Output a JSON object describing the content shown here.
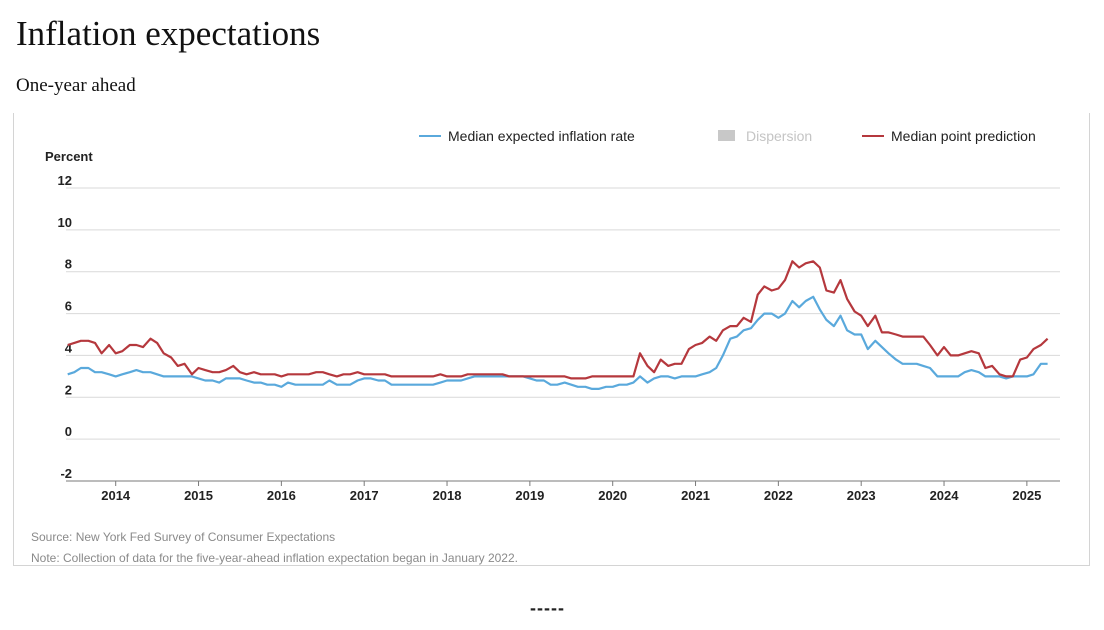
{
  "header": {
    "title": "Inflation expectations",
    "subtitle": "One-year ahead"
  },
  "footnotes": {
    "source": "Source: New York Fed Survey of Consumer Expectations",
    "note": "Note: Collection of data for the five-year-ahead inflation expectation began in January 2022."
  },
  "separator": "-----",
  "chart_data": {
    "type": "line",
    "ylabel": "Percent",
    "ylim": [
      -2,
      12
    ],
    "yticks": [
      -2,
      0,
      2,
      4,
      6,
      8,
      10,
      12
    ],
    "xlim": [
      2013.4,
      2025.4
    ],
    "xticks": [
      "2014",
      "2015",
      "2016",
      "2017",
      "2018",
      "2019",
      "2020",
      "2021",
      "2022",
      "2023",
      "2024",
      "2025"
    ],
    "grid": "horizontal",
    "legend_position": "top-right",
    "legend": [
      {
        "name": "Median expected inflation rate",
        "color": "#5aa9dc",
        "active": true
      },
      {
        "name": "Dispersion",
        "color": "#c8c8c8",
        "active": false
      },
      {
        "name": "Median point prediction",
        "color": "#b5383d",
        "active": true
      }
    ],
    "series": [
      {
        "name": "Median expected inflation rate",
        "color": "#5aa9dc",
        "points": [
          [
            2013.42,
            3.1
          ],
          [
            2013.5,
            3.2
          ],
          [
            2013.58,
            3.4
          ],
          [
            2013.67,
            3.4
          ],
          [
            2013.75,
            3.2
          ],
          [
            2013.83,
            3.2
          ],
          [
            2013.92,
            3.1
          ],
          [
            2014.0,
            3.0
          ],
          [
            2014.08,
            3.1
          ],
          [
            2014.17,
            3.2
          ],
          [
            2014.25,
            3.3
          ],
          [
            2014.33,
            3.2
          ],
          [
            2014.42,
            3.2
          ],
          [
            2014.5,
            3.1
          ],
          [
            2014.58,
            3.0
          ],
          [
            2014.67,
            3.0
          ],
          [
            2014.75,
            3.0
          ],
          [
            2014.83,
            3.0
          ],
          [
            2014.92,
            3.0
          ],
          [
            2015.0,
            2.9
          ],
          [
            2015.08,
            2.8
          ],
          [
            2015.17,
            2.8
          ],
          [
            2015.25,
            2.7
          ],
          [
            2015.33,
            2.9
          ],
          [
            2015.42,
            2.9
          ],
          [
            2015.5,
            2.9
          ],
          [
            2015.58,
            2.8
          ],
          [
            2015.67,
            2.7
          ],
          [
            2015.75,
            2.7
          ],
          [
            2015.83,
            2.6
          ],
          [
            2015.92,
            2.6
          ],
          [
            2016.0,
            2.5
          ],
          [
            2016.08,
            2.7
          ],
          [
            2016.17,
            2.6
          ],
          [
            2016.25,
            2.6
          ],
          [
            2016.33,
            2.6
          ],
          [
            2016.42,
            2.6
          ],
          [
            2016.5,
            2.6
          ],
          [
            2016.58,
            2.8
          ],
          [
            2016.67,
            2.6
          ],
          [
            2016.75,
            2.6
          ],
          [
            2016.83,
            2.6
          ],
          [
            2016.92,
            2.8
          ],
          [
            2017.0,
            2.9
          ],
          [
            2017.08,
            2.9
          ],
          [
            2017.17,
            2.8
          ],
          [
            2017.25,
            2.8
          ],
          [
            2017.33,
            2.6
          ],
          [
            2017.42,
            2.6
          ],
          [
            2017.5,
            2.6
          ],
          [
            2017.58,
            2.6
          ],
          [
            2017.67,
            2.6
          ],
          [
            2017.75,
            2.6
          ],
          [
            2017.83,
            2.6
          ],
          [
            2017.92,
            2.7
          ],
          [
            2018.0,
            2.8
          ],
          [
            2018.08,
            2.8
          ],
          [
            2018.17,
            2.8
          ],
          [
            2018.25,
            2.9
          ],
          [
            2018.33,
            3.0
          ],
          [
            2018.42,
            3.0
          ],
          [
            2018.5,
            3.0
          ],
          [
            2018.58,
            3.0
          ],
          [
            2018.67,
            3.0
          ],
          [
            2018.75,
            3.0
          ],
          [
            2018.83,
            3.0
          ],
          [
            2018.92,
            3.0
          ],
          [
            2019.0,
            2.9
          ],
          [
            2019.08,
            2.8
          ],
          [
            2019.17,
            2.8
          ],
          [
            2019.25,
            2.6
          ],
          [
            2019.33,
            2.6
          ],
          [
            2019.42,
            2.7
          ],
          [
            2019.5,
            2.6
          ],
          [
            2019.58,
            2.5
          ],
          [
            2019.67,
            2.5
          ],
          [
            2019.75,
            2.4
          ],
          [
            2019.83,
            2.4
          ],
          [
            2019.92,
            2.5
          ],
          [
            2020.0,
            2.5
          ],
          [
            2020.08,
            2.6
          ],
          [
            2020.17,
            2.6
          ],
          [
            2020.25,
            2.7
          ],
          [
            2020.33,
            3.0
          ],
          [
            2020.42,
            2.7
          ],
          [
            2020.5,
            2.9
          ],
          [
            2020.58,
            3.0
          ],
          [
            2020.67,
            3.0
          ],
          [
            2020.75,
            2.9
          ],
          [
            2020.83,
            3.0
          ],
          [
            2020.92,
            3.0
          ],
          [
            2021.0,
            3.0
          ],
          [
            2021.08,
            3.1
          ],
          [
            2021.17,
            3.2
          ],
          [
            2021.25,
            3.4
          ],
          [
            2021.33,
            4.0
          ],
          [
            2021.42,
            4.8
          ],
          [
            2021.5,
            4.9
          ],
          [
            2021.58,
            5.2
          ],
          [
            2021.67,
            5.3
          ],
          [
            2021.75,
            5.7
          ],
          [
            2021.83,
            6.0
          ],
          [
            2021.92,
            6.0
          ],
          [
            2022.0,
            5.8
          ],
          [
            2022.08,
            6.0
          ],
          [
            2022.17,
            6.6
          ],
          [
            2022.25,
            6.3
          ],
          [
            2022.33,
            6.6
          ],
          [
            2022.42,
            6.8
          ],
          [
            2022.5,
            6.2
          ],
          [
            2022.58,
            5.7
          ],
          [
            2022.67,
            5.4
          ],
          [
            2022.75,
            5.9
          ],
          [
            2022.83,
            5.2
          ],
          [
            2022.92,
            5.0
          ],
          [
            2023.0,
            5.0
          ],
          [
            2023.08,
            4.3
          ],
          [
            2023.17,
            4.7
          ],
          [
            2023.25,
            4.4
          ],
          [
            2023.33,
            4.1
          ],
          [
            2023.42,
            3.8
          ],
          [
            2023.5,
            3.6
          ],
          [
            2023.58,
            3.6
          ],
          [
            2023.67,
            3.6
          ],
          [
            2023.75,
            3.5
          ],
          [
            2023.83,
            3.4
          ],
          [
            2023.92,
            3.0
          ],
          [
            2024.0,
            3.0
          ],
          [
            2024.08,
            3.0
          ],
          [
            2024.17,
            3.0
          ],
          [
            2024.25,
            3.2
          ],
          [
            2024.33,
            3.3
          ],
          [
            2024.42,
            3.2
          ],
          [
            2024.5,
            3.0
          ],
          [
            2024.58,
            3.0
          ],
          [
            2024.67,
            3.0
          ],
          [
            2024.75,
            2.9
          ],
          [
            2024.83,
            3.0
          ],
          [
            2024.92,
            3.0
          ],
          [
            2025.0,
            3.0
          ],
          [
            2025.08,
            3.1
          ],
          [
            2025.17,
            3.6
          ],
          [
            2025.25,
            3.6
          ]
        ]
      },
      {
        "name": "Median point prediction",
        "color": "#b5383d",
        "points": [
          [
            2013.42,
            4.5
          ],
          [
            2013.5,
            4.6
          ],
          [
            2013.58,
            4.7
          ],
          [
            2013.67,
            4.7
          ],
          [
            2013.75,
            4.6
          ],
          [
            2013.83,
            4.1
          ],
          [
            2013.92,
            4.5
          ],
          [
            2014.0,
            4.1
          ],
          [
            2014.08,
            4.2
          ],
          [
            2014.17,
            4.5
          ],
          [
            2014.25,
            4.5
          ],
          [
            2014.33,
            4.4
          ],
          [
            2014.42,
            4.8
          ],
          [
            2014.5,
            4.6
          ],
          [
            2014.58,
            4.1
          ],
          [
            2014.67,
            3.9
          ],
          [
            2014.75,
            3.5
          ],
          [
            2014.83,
            3.6
          ],
          [
            2014.92,
            3.1
          ],
          [
            2015.0,
            3.4
          ],
          [
            2015.08,
            3.3
          ],
          [
            2015.17,
            3.2
          ],
          [
            2015.25,
            3.2
          ],
          [
            2015.33,
            3.3
          ],
          [
            2015.42,
            3.5
          ],
          [
            2015.5,
            3.2
          ],
          [
            2015.58,
            3.1
          ],
          [
            2015.67,
            3.2
          ],
          [
            2015.75,
            3.1
          ],
          [
            2015.83,
            3.1
          ],
          [
            2015.92,
            3.1
          ],
          [
            2016.0,
            3.0
          ],
          [
            2016.08,
            3.1
          ],
          [
            2016.17,
            3.1
          ],
          [
            2016.25,
            3.1
          ],
          [
            2016.33,
            3.1
          ],
          [
            2016.42,
            3.2
          ],
          [
            2016.5,
            3.2
          ],
          [
            2016.58,
            3.1
          ],
          [
            2016.67,
            3.0
          ],
          [
            2016.75,
            3.1
          ],
          [
            2016.83,
            3.1
          ],
          [
            2016.92,
            3.2
          ],
          [
            2017.0,
            3.1
          ],
          [
            2017.08,
            3.1
          ],
          [
            2017.17,
            3.1
          ],
          [
            2017.25,
            3.1
          ],
          [
            2017.33,
            3.0
          ],
          [
            2017.42,
            3.0
          ],
          [
            2017.5,
            3.0
          ],
          [
            2017.58,
            3.0
          ],
          [
            2017.67,
            3.0
          ],
          [
            2017.75,
            3.0
          ],
          [
            2017.83,
            3.0
          ],
          [
            2017.92,
            3.1
          ],
          [
            2018.0,
            3.0
          ],
          [
            2018.08,
            3.0
          ],
          [
            2018.17,
            3.0
          ],
          [
            2018.25,
            3.1
          ],
          [
            2018.33,
            3.1
          ],
          [
            2018.42,
            3.1
          ],
          [
            2018.5,
            3.1
          ],
          [
            2018.58,
            3.1
          ],
          [
            2018.67,
            3.1
          ],
          [
            2018.75,
            3.0
          ],
          [
            2018.83,
            3.0
          ],
          [
            2018.92,
            3.0
          ],
          [
            2019.0,
            3.0
          ],
          [
            2019.08,
            3.0
          ],
          [
            2019.17,
            3.0
          ],
          [
            2019.25,
            3.0
          ],
          [
            2019.33,
            3.0
          ],
          [
            2019.42,
            3.0
          ],
          [
            2019.5,
            2.9
          ],
          [
            2019.58,
            2.9
          ],
          [
            2019.67,
            2.9
          ],
          [
            2019.75,
            3.0
          ],
          [
            2019.83,
            3.0
          ],
          [
            2019.92,
            3.0
          ],
          [
            2020.0,
            3.0
          ],
          [
            2020.08,
            3.0
          ],
          [
            2020.17,
            3.0
          ],
          [
            2020.25,
            3.0
          ],
          [
            2020.33,
            4.1
          ],
          [
            2020.42,
            3.5
          ],
          [
            2020.5,
            3.2
          ],
          [
            2020.58,
            3.8
          ],
          [
            2020.67,
            3.5
          ],
          [
            2020.75,
            3.6
          ],
          [
            2020.83,
            3.6
          ],
          [
            2020.92,
            4.3
          ],
          [
            2021.0,
            4.5
          ],
          [
            2021.08,
            4.6
          ],
          [
            2021.17,
            4.9
          ],
          [
            2021.25,
            4.7
          ],
          [
            2021.33,
            5.2
          ],
          [
            2021.42,
            5.4
          ],
          [
            2021.5,
            5.4
          ],
          [
            2021.58,
            5.8
          ],
          [
            2021.67,
            5.6
          ],
          [
            2021.75,
            6.9
          ],
          [
            2021.83,
            7.3
          ],
          [
            2021.92,
            7.1
          ],
          [
            2022.0,
            7.2
          ],
          [
            2022.08,
            7.6
          ],
          [
            2022.17,
            8.5
          ],
          [
            2022.25,
            8.2
          ],
          [
            2022.33,
            8.4
          ],
          [
            2022.42,
            8.5
          ],
          [
            2022.5,
            8.2
          ],
          [
            2022.58,
            7.1
          ],
          [
            2022.67,
            7.0
          ],
          [
            2022.75,
            7.6
          ],
          [
            2022.83,
            6.7
          ],
          [
            2022.92,
            6.1
          ],
          [
            2023.0,
            5.9
          ],
          [
            2023.08,
            5.4
          ],
          [
            2023.17,
            5.9
          ],
          [
            2023.25,
            5.1
          ],
          [
            2023.33,
            5.1
          ],
          [
            2023.42,
            5.0
          ],
          [
            2023.5,
            4.9
          ],
          [
            2023.58,
            4.9
          ],
          [
            2023.67,
            4.9
          ],
          [
            2023.75,
            4.9
          ],
          [
            2023.83,
            4.5
          ],
          [
            2023.92,
            4.0
          ],
          [
            2024.0,
            4.4
          ],
          [
            2024.08,
            4.0
          ],
          [
            2024.17,
            4.0
          ],
          [
            2024.25,
            4.1
          ],
          [
            2024.33,
            4.2
          ],
          [
            2024.42,
            4.1
          ],
          [
            2024.5,
            3.4
          ],
          [
            2024.58,
            3.5
          ],
          [
            2024.67,
            3.1
          ],
          [
            2024.75,
            3.0
          ],
          [
            2024.83,
            3.0
          ],
          [
            2024.92,
            3.8
          ],
          [
            2025.0,
            3.9
          ],
          [
            2025.08,
            4.3
          ],
          [
            2025.17,
            4.5
          ],
          [
            2025.25,
            4.8
          ]
        ]
      }
    ]
  }
}
